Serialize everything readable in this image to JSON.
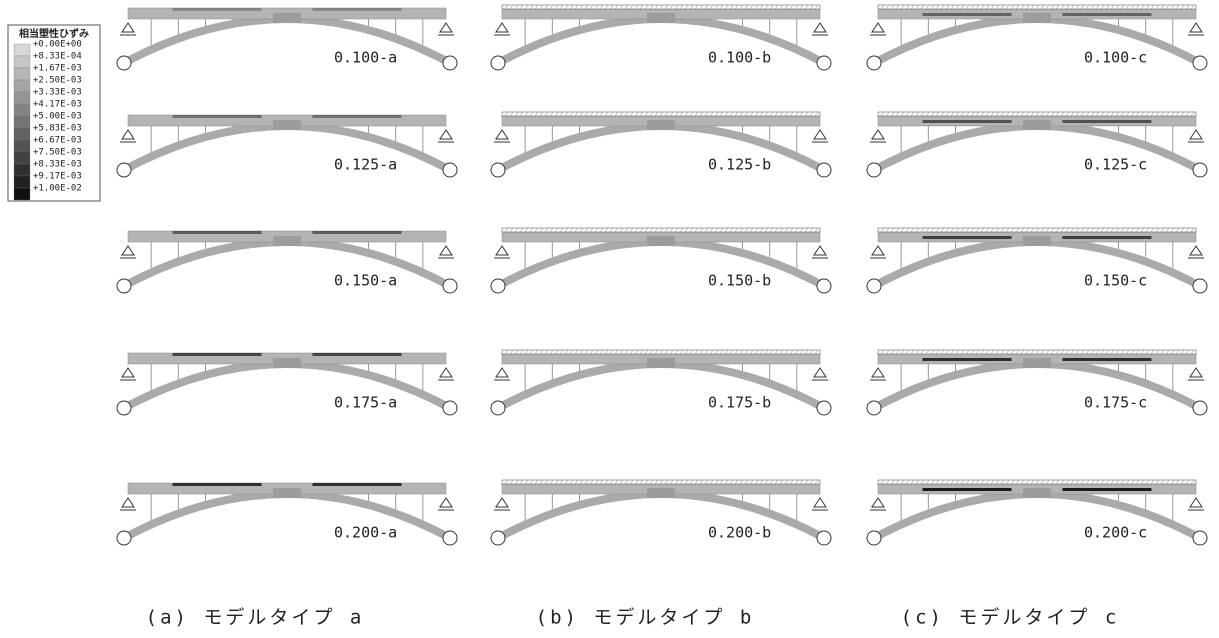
{
  "legend": {
    "title": "相当塑性ひずみ",
    "labels": [
      "+0.00E+00",
      "+8.33E-04",
      "+1.67E-03",
      "+2.50E-03",
      "+3.33E-03",
      "+4.17E-03",
      "+5.00E-03",
      "+5.83E-03",
      "+6.67E-03",
      "+7.50E-03",
      "+8.33E-03",
      "+9.17E-03",
      "+1.00E-02"
    ]
  },
  "columns": [
    {
      "caption": "(a) モデルタイプ a",
      "panels": [
        "0.100-a",
        "0.125-a",
        "0.150-a",
        "0.175-a",
        "0.200-a"
      ]
    },
    {
      "caption": "(b) モデルタイプ b",
      "panels": [
        "0.100-b",
        "0.125-b",
        "0.150-b",
        "0.175-b",
        "0.200-b"
      ]
    },
    {
      "caption": "(c) モデルタイプ c",
      "panels": [
        "0.100-c",
        "0.125-c",
        "0.150-c",
        "0.175-c",
        "0.200-c"
      ]
    }
  ]
}
